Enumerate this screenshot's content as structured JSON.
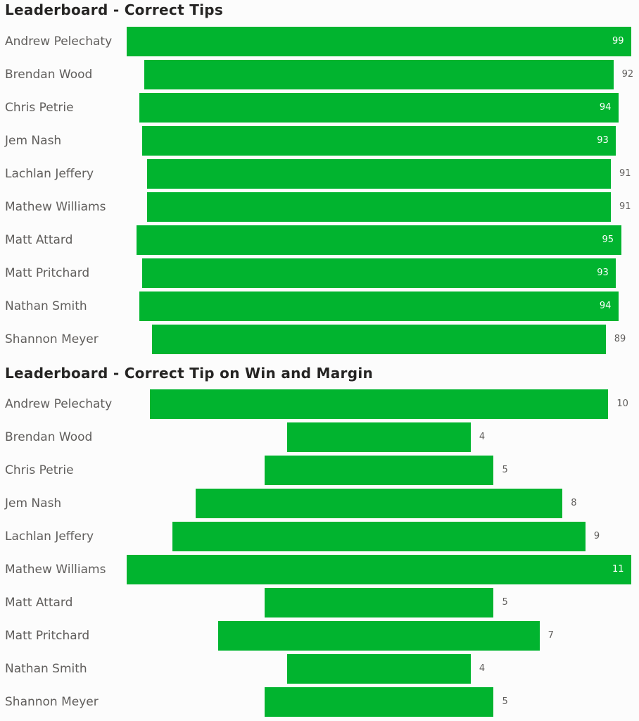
{
  "chart_data": [
    {
      "type": "bar",
      "orientation": "horizontal",
      "alignment": "centered",
      "title": "Leaderboard - Correct Tips",
      "categories": [
        "Andrew Pelechaty",
        "Brendan Wood",
        "Chris Petrie",
        "Jem Nash",
        "Lachlan Jeffery",
        "Mathew Williams",
        "Matt Attard",
        "Matt Pritchard",
        "Nathan Smith",
        "Shannon Meyer"
      ],
      "values": [
        99,
        92,
        94,
        93,
        91,
        91,
        95,
        93,
        94,
        89
      ],
      "color": "#01b42f",
      "data_labels": true,
      "grid": false
    },
    {
      "type": "bar",
      "orientation": "horizontal",
      "alignment": "centered",
      "title": "Leaderboard - Correct Tip on Win and Margin",
      "categories": [
        "Andrew Pelechaty",
        "Brendan Wood",
        "Chris Petrie",
        "Jem Nash",
        "Lachlan Jeffery",
        "Mathew Williams",
        "Matt Attard",
        "Matt Pritchard",
        "Nathan Smith",
        "Shannon Meyer"
      ],
      "values": [
        10,
        4,
        5,
        8,
        9,
        11,
        5,
        7,
        4,
        5
      ],
      "color": "#01b42f",
      "data_labels": true,
      "grid": false
    }
  ]
}
